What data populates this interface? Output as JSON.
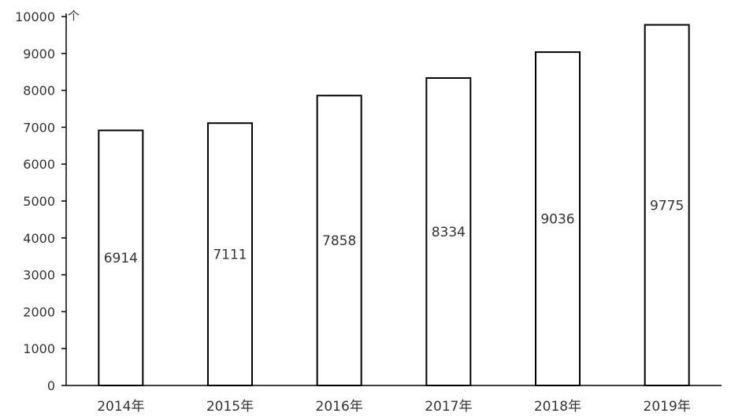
{
  "chart_data": {
    "type": "bar",
    "categories": [
      "2014年",
      "2015年",
      "2016年",
      "2017年",
      "2018年",
      "2019年"
    ],
    "values": [
      6914,
      7111,
      7858,
      8334,
      9036,
      9775
    ],
    "data_labels": [
      "6914",
      "7111",
      "7858",
      "8334",
      "9036",
      "9775"
    ],
    "y_unit": "个",
    "yticks": [
      "0",
      "1000",
      "2000",
      "3000",
      "4000",
      "5000",
      "6000",
      "7000",
      "8000",
      "9000",
      "10000"
    ],
    "ylim": [
      0,
      10000
    ],
    "grid": false,
    "bar_fill": "#ffffff",
    "bar_stroke": "#000000",
    "axis_color": "#000000"
  }
}
